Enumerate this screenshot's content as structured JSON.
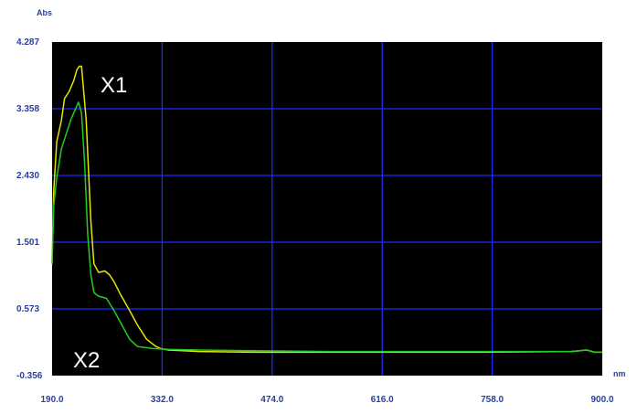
{
  "chart_data": {
    "type": "line",
    "title": "",
    "ylabel": "Abs",
    "xlabel": "nm",
    "xlim": [
      190.0,
      900.0
    ],
    "ylim": [
      -0.356,
      4.287
    ],
    "x_ticks": [
      "190.0",
      "332.0",
      "474.0",
      "616.0",
      "758.0",
      "900.0"
    ],
    "y_ticks": [
      "4.287",
      "3.358",
      "2.430",
      "1.501",
      "0.573",
      "-0.356"
    ],
    "grid": true,
    "background": "#000000",
    "grid_color": "#1a2dff",
    "series": [
      {
        "name": "X1",
        "color": "#e6e600",
        "x": [
          190,
          192,
          196,
          202,
          206,
          212,
          218,
          222,
          225,
          228,
          234,
          240,
          244,
          250,
          258,
          264,
          270,
          278,
          290,
          300,
          312,
          324,
          330,
          340,
          380,
          450,
          550,
          650,
          750,
          860,
          880,
          890,
          900
        ],
        "y": [
          1.2,
          2.2,
          2.9,
          3.2,
          3.5,
          3.6,
          3.75,
          3.9,
          3.95,
          3.95,
          3.2,
          1.8,
          1.2,
          1.08,
          1.1,
          1.05,
          0.95,
          0.78,
          0.55,
          0.35,
          0.15,
          0.05,
          0.02,
          0.0,
          -0.02,
          -0.03,
          -0.03,
          -0.03,
          -0.03,
          -0.02,
          0.0,
          -0.03,
          -0.03
        ]
      },
      {
        "name": "X2",
        "color": "#22cc22",
        "x": [
          190,
          192,
          196,
          202,
          208,
          214,
          220,
          224,
          228,
          232,
          236,
          240,
          244,
          250,
          260,
          270,
          280,
          290,
          300,
          320,
          340,
          380,
          450,
          550,
          650,
          750,
          860,
          880,
          890,
          900
        ],
        "y": [
          1.2,
          2.0,
          2.4,
          2.8,
          3.0,
          3.2,
          3.35,
          3.45,
          3.3,
          2.6,
          1.6,
          1.05,
          0.8,
          0.75,
          0.72,
          0.55,
          0.35,
          0.15,
          0.05,
          0.02,
          0.01,
          0.0,
          -0.01,
          -0.02,
          -0.02,
          -0.02,
          -0.02,
          0.0,
          -0.03,
          -0.03
        ]
      }
    ]
  }
}
